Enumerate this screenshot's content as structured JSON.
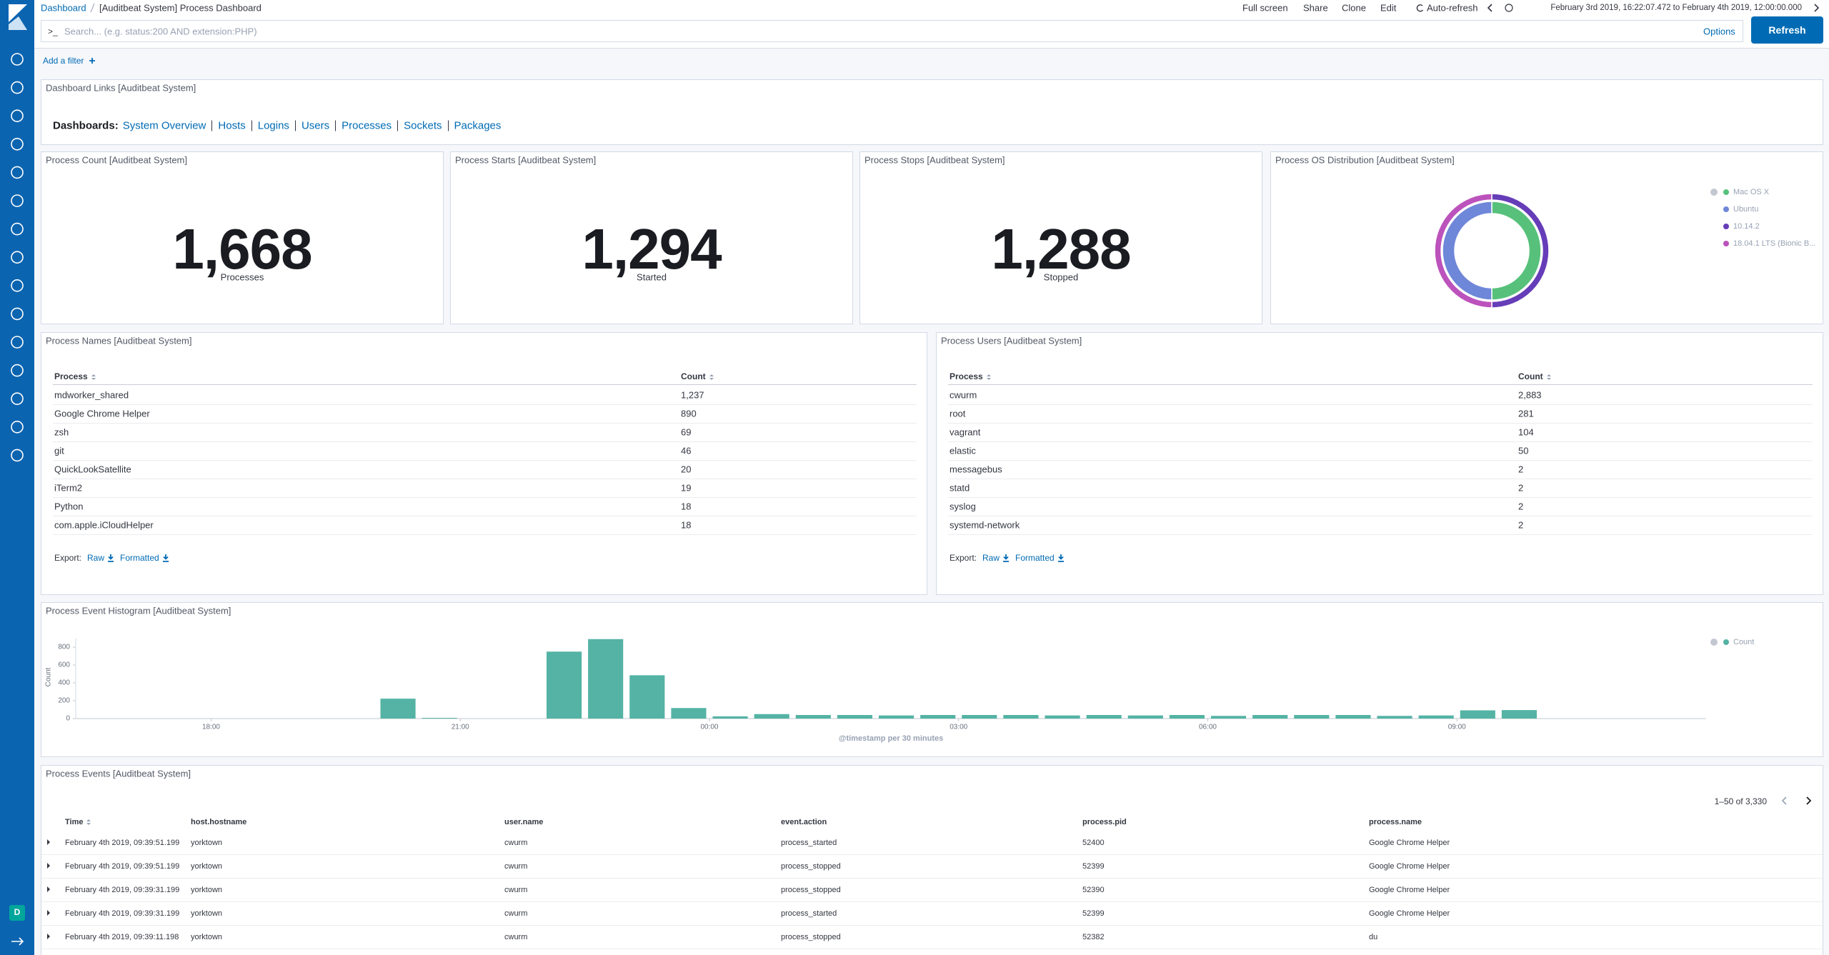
{
  "breadcrumbs": [
    "Dashboard",
    "[Auditbeat System] Process Dashboard"
  ],
  "top_menu": [
    "Full screen",
    "Share",
    "Clone",
    "Edit",
    "Auto-refresh"
  ],
  "time_range": "February 3rd 2019, 16:22:07.472 to February 4th 2019, 12:00:00.000",
  "search": {
    "prompt": ">_",
    "placeholder": "Search... (e.g. status:200 AND extension:PHP)",
    "options": "Options",
    "refresh": "Refresh"
  },
  "add_filter": "Add a filter",
  "links_panel": {
    "title": "Dashboard Links [Auditbeat System]",
    "label": "Dashboards:",
    "links": [
      "System Overview",
      "Hosts",
      "Logins",
      "Users",
      "Processes",
      "Sockets",
      "Packages"
    ]
  },
  "metrics": [
    {
      "title": "Process Count [Auditbeat System]",
      "value": "1,668",
      "label": "Processes"
    },
    {
      "title": "Process Starts [Auditbeat System]",
      "value": "1,294",
      "label": "Started"
    },
    {
      "title": "Process Stops [Auditbeat System]",
      "value": "1,288",
      "label": "Stopped"
    }
  ],
  "tables": [
    {
      "title": "Process Names [Auditbeat System]",
      "columns": [
        "Process",
        "Count"
      ],
      "rows": [
        [
          "mdworker_shared",
          "1,237"
        ],
        [
          "Google Chrome Helper",
          "890"
        ],
        [
          "zsh",
          "69"
        ],
        [
          "git",
          "46"
        ],
        [
          "QuickLookSatellite",
          "20"
        ],
        [
          "iTerm2",
          "19"
        ],
        [
          "Python",
          "18"
        ],
        [
          "com.apple.iCloudHelper",
          "18"
        ]
      ],
      "export": {
        "label": "Export:",
        "raw": "Raw",
        "formatted": "Formatted"
      }
    },
    {
      "title": "Process Users [Auditbeat System]",
      "columns": [
        "Process",
        "Count"
      ],
      "rows": [
        [
          "cwurm",
          "2,883"
        ],
        [
          "root",
          "281"
        ],
        [
          "vagrant",
          "104"
        ],
        [
          "elastic",
          "50"
        ],
        [
          "messagebus",
          "2"
        ],
        [
          "statd",
          "2"
        ],
        [
          "syslog",
          "2"
        ],
        [
          "systemd-network",
          "2"
        ]
      ],
      "export": {
        "label": "Export:",
        "raw": "Raw",
        "formatted": "Formatted"
      }
    }
  ],
  "events": {
    "title": "Process Events [Auditbeat System]",
    "pagination": "1–50 of 3,330",
    "columns": [
      "Time",
      "host.hostname",
      "user.name",
      "event.action",
      "process.pid",
      "process.name"
    ],
    "rows": [
      [
        "February 4th 2019, 09:39:51.199",
        "yorktown",
        "cwurm",
        "process_started",
        "52400",
        "Google Chrome Helper"
      ],
      [
        "February 4th 2019, 09:39:51.199",
        "yorktown",
        "cwurm",
        "process_stopped",
        "52399",
        "Google Chrome Helper"
      ],
      [
        "February 4th 2019, 09:39:31.199",
        "yorktown",
        "cwurm",
        "process_stopped",
        "52390",
        "Google Chrome Helper"
      ],
      [
        "February 4th 2019, 09:39:31.199",
        "yorktown",
        "cwurm",
        "process_started",
        "52399",
        "Google Chrome Helper"
      ],
      [
        "February 4th 2019, 09:39:11.198",
        "yorktown",
        "cwurm",
        "process_stopped",
        "52382",
        "du"
      ]
    ]
  },
  "nav_badge": "D",
  "chart_data": [
    {
      "type": "pie",
      "title": "Process OS Distribution [Auditbeat System]",
      "categories": [
        "Mac OS X",
        "Ubuntu",
        "10.14.2",
        "18.04.1 LTS (Bionic B..."
      ],
      "values": [
        50,
        50,
        50,
        50
      ],
      "rings": [
        0,
        0,
        1,
        1
      ],
      "colors": [
        "#57c17b",
        "#6f87d8",
        "#663db8",
        "#bc52bc"
      ],
      "legend": "top-right"
    },
    {
      "type": "bar",
      "title": "Process Event Histogram [Auditbeat System]",
      "x": [
        20,
        20.5,
        22,
        22.5,
        23,
        23.5,
        24,
        24.5,
        25,
        25.5,
        26,
        26.5,
        27,
        27.5,
        28,
        28.5,
        29,
        29.5,
        30,
        30.5,
        31,
        31.5,
        32,
        32.5,
        33,
        33.5
      ],
      "series": [
        {
          "name": "Count",
          "color": "#54b3a4",
          "values": [
            223,
            8,
            750,
            890,
            485,
            118,
            25,
            50,
            40,
            40,
            35,
            40,
            40,
            40,
            35,
            40,
            35,
            40,
            30,
            40,
            40,
            40,
            30,
            35,
            92,
            95
          ]
        }
      ],
      "xlim": [
        16.37,
        36
      ],
      "xticks": [
        {
          "value": 18,
          "label": "18:00"
        },
        {
          "value": 21,
          "label": "21:00"
        },
        {
          "value": 24,
          "label": "00:00"
        },
        {
          "value": 27,
          "label": "03:00"
        },
        {
          "value": 30,
          "label": "06:00"
        },
        {
          "value": 33,
          "label": "09:00"
        }
      ],
      "ylim": [
        0,
        900
      ],
      "yticks": [
        0,
        200,
        400,
        600,
        800
      ],
      "y_label": "Count",
      "x_label": "@timestamp per 30 minutes",
      "legend": "top-right",
      "grid": false
    }
  ]
}
